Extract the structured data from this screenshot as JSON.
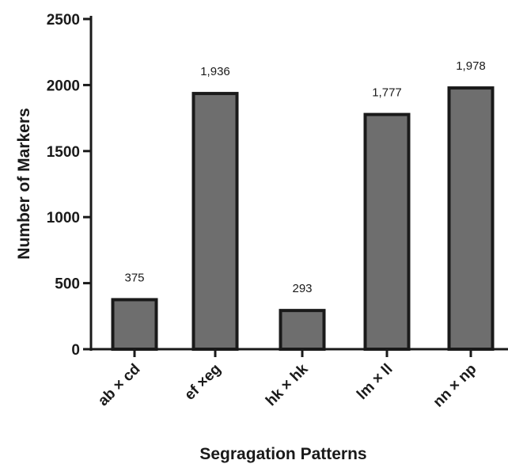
{
  "chart_data": {
    "type": "bar",
    "categories": [
      "ab × cd",
      "ef ×eg",
      "hk × hk",
      "lm × ll",
      "nn × np"
    ],
    "values": [
      375,
      1936,
      293,
      1777,
      1978
    ],
    "data_labels": [
      "375",
      "1,936",
      "293",
      "1,777",
      "1,978"
    ],
    "xlabel": "Segragation Patterns",
    "ylabel": "Number of Markers",
    "ylim": [
      0,
      2500
    ],
    "yticks": [
      0,
      500,
      1000,
      1500,
      2000,
      2500
    ],
    "ytick_labels": [
      "0",
      "500",
      "1000",
      "1500",
      "2000",
      "2500"
    ],
    "bar_color": "#6e6e6e",
    "edge_color": "#1a1a1a",
    "grid": false,
    "legend": "none"
  }
}
